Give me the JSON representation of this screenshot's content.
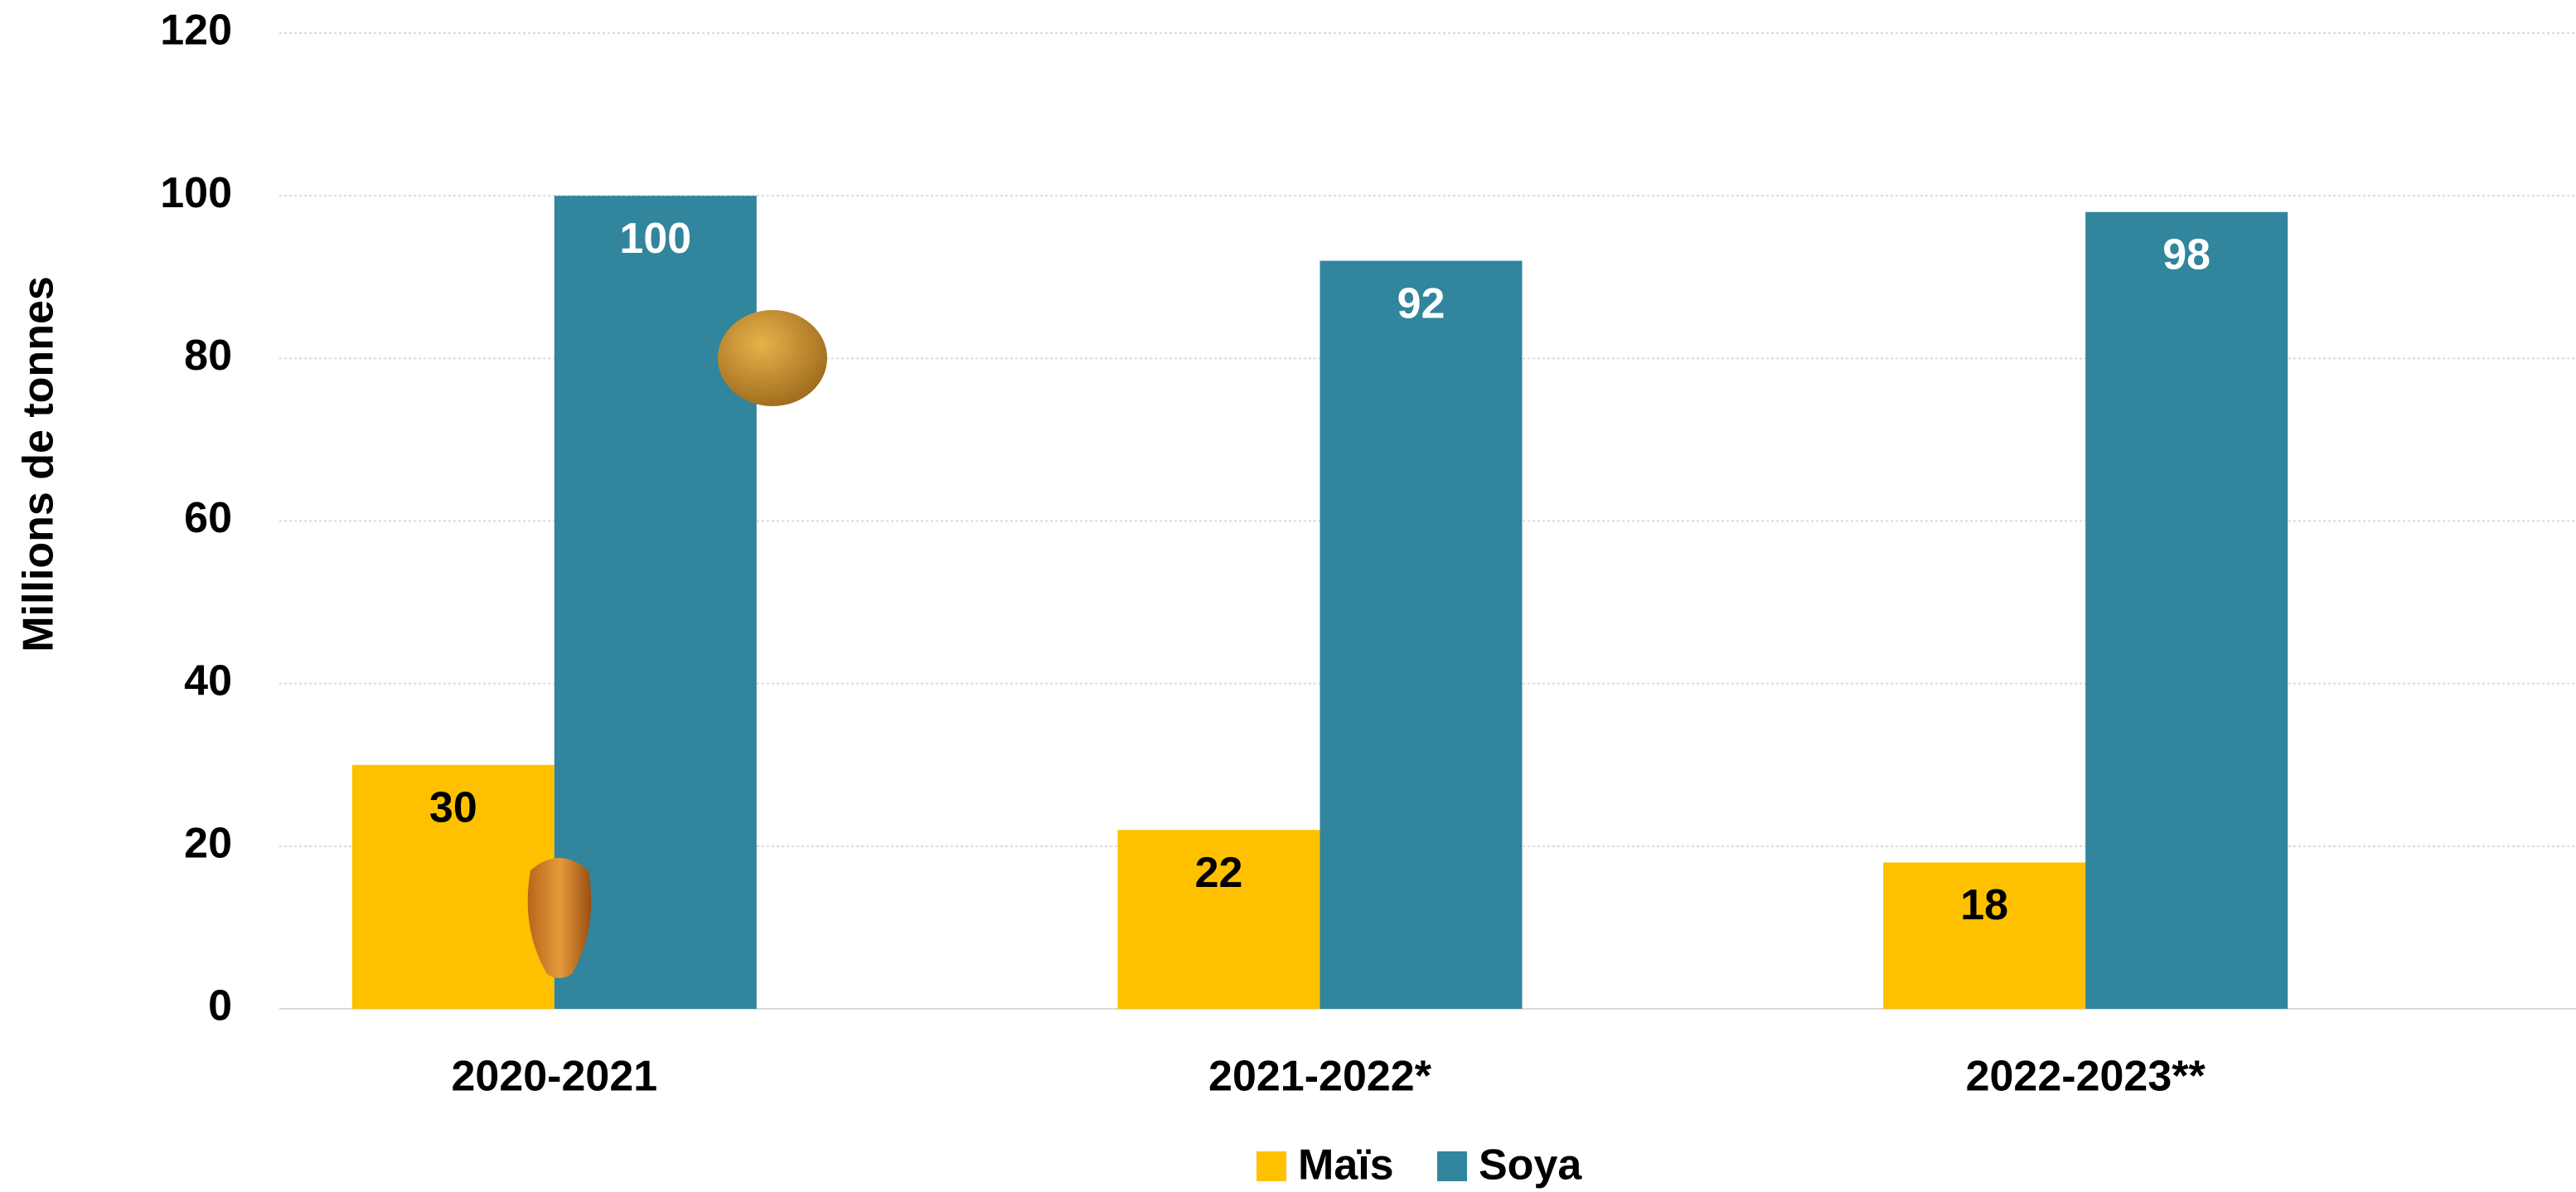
{
  "chart_data": {
    "type": "bar",
    "y_axis_label": "Millions de tonnes",
    "categories": [
      "2020-2021",
      "2021-2022*",
      "2022-2023**"
    ],
    "series": [
      {
        "name": "Maïs",
        "color": "#FFC000",
        "label_color": "#000000",
        "values": [
          30,
          22,
          18
        ]
      },
      {
        "name": "Soya",
        "color": "#31859C",
        "label_color": "#FFFFFF",
        "values": [
          100,
          92,
          98
        ]
      }
    ],
    "ylim": [
      0,
      120
    ],
    "yticks": [
      0,
      20,
      40,
      60,
      80,
      100,
      120
    ],
    "grid": true,
    "legend": "bottom"
  }
}
